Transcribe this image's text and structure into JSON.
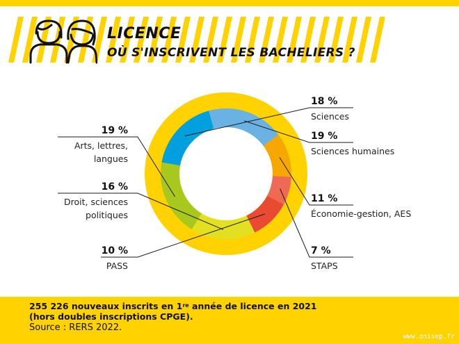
{
  "header": {
    "title_line1": "LICENCE",
    "title_line2": "OÙ S'INSCRIVENT LES BACHELIERS ?"
  },
  "icons": [
    "people-icon"
  ],
  "colors": {
    "brand_yellow": "#ffd200",
    "outer_ring": "#ffd200",
    "inner_white": "#ffffff"
  },
  "chart_data": {
    "type": "pie",
    "variant": "donut",
    "slices": [
      {
        "label": "Sciences",
        "percent_text": "18 %",
        "value": 18,
        "color": "#00a0df"
      },
      {
        "label": "Sciences humaines",
        "percent_text": "19 %",
        "value": 19,
        "color": "#6bb2e4"
      },
      {
        "label": "Économie-gestion, AES",
        "percent_text": "11 %",
        "value": 11,
        "color": "#f6a800"
      },
      {
        "label": "STAPS",
        "percent_text": "7 %",
        "value": 7,
        "color": "#ee6a55"
      },
      {
        "label": "PASS",
        "percent_text": "10 %",
        "value": 10,
        "color": "#e84a32"
      },
      {
        "label": "Droit, sciences politiques",
        "label_lines": [
          "Droit, sciences",
          "politiques"
        ],
        "percent_text": "16 %",
        "value": 16,
        "color": "#e3e021"
      },
      {
        "label": "Arts, lettres, langues",
        "label_lines": [
          "Arts, lettres,",
          "langues"
        ],
        "percent_text": "19 %",
        "value": 19,
        "color": "#a8c81e"
      }
    ]
  },
  "footer": {
    "line1_a": "255 226 nouveaux inscrits en 1",
    "line1_sup": "re",
    "line1_b": " année de licence en 2021",
    "line2": "(hors doubles inscriptions CPGE).",
    "source": "Source : RERS 2022."
  },
  "watermark": "www.onisep.fr"
}
